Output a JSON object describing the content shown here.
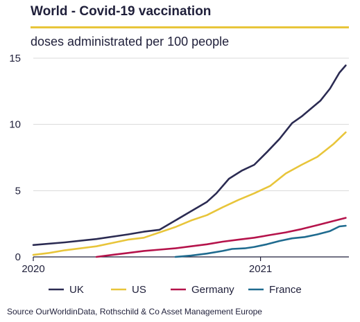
{
  "header": {
    "title": "World - Covid-19 vaccination",
    "subtitle": "doses administrated per 100 people"
  },
  "footer": {
    "source": "Source OurWorldinData, Rothschild  & Co Asset Management Europe"
  },
  "colors": {
    "UK": "#2b2b52",
    "US": "#e8c53a",
    "Germany": "#b5134b",
    "France": "#1f6b8f",
    "title_rule": "#e8c53a"
  },
  "chart_data": {
    "type": "line",
    "title": "World - Covid-19 vaccination",
    "subtitle": "doses administrated per 100 people",
    "ylim": [
      0,
      15
    ],
    "yticks": [
      0,
      5,
      10,
      15
    ],
    "ytick_labels": [
      "0",
      "5",
      "10",
      "15"
    ],
    "x_range": [
      0,
      100
    ],
    "xticks": [
      {
        "x": 0,
        "label": "2020"
      },
      {
        "x": 72,
        "label": "2021"
      }
    ],
    "legend_position": "bottom",
    "grid": "horizontal",
    "series": [
      {
        "name": "UK",
        "x": [
          0,
          10,
          20,
          30,
          35,
          40,
          45,
          50,
          55,
          58,
          62,
          66,
          70,
          74,
          78,
          82,
          85,
          88,
          91,
          94,
          97,
          99
        ],
        "values": [
          0.9,
          1.1,
          1.35,
          1.7,
          1.9,
          2.05,
          2.75,
          3.45,
          4.15,
          4.8,
          5.9,
          6.5,
          6.95,
          7.9,
          8.9,
          10.1,
          10.6,
          11.2,
          11.8,
          12.7,
          13.9,
          14.45
        ]
      },
      {
        "name": "US",
        "x": [
          0,
          5,
          10,
          15,
          20,
          25,
          30,
          35,
          40,
          45,
          50,
          55,
          60,
          65,
          70,
          75,
          80,
          85,
          90,
          95,
          99
        ],
        "values": [
          0.15,
          0.3,
          0.5,
          0.65,
          0.8,
          1.05,
          1.3,
          1.45,
          1.85,
          2.25,
          2.75,
          3.15,
          3.75,
          4.3,
          4.8,
          5.35,
          6.3,
          6.95,
          7.55,
          8.5,
          9.4
        ]
      },
      {
        "name": "Germany",
        "x": [
          20,
          25,
          30,
          35,
          40,
          45,
          50,
          55,
          60,
          65,
          70,
          75,
          80,
          85,
          90,
          95,
          99
        ],
        "values": [
          0.0,
          0.15,
          0.3,
          0.45,
          0.55,
          0.65,
          0.8,
          0.95,
          1.15,
          1.3,
          1.45,
          1.65,
          1.85,
          2.1,
          2.4,
          2.7,
          2.95
        ]
      },
      {
        "name": "France",
        "x": [
          45,
          50,
          55,
          60,
          63,
          67,
          70,
          74,
          78,
          82,
          86,
          90,
          94,
          97,
          99
        ],
        "values": [
          0.0,
          0.1,
          0.25,
          0.45,
          0.6,
          0.65,
          0.75,
          0.95,
          1.2,
          1.4,
          1.5,
          1.7,
          1.95,
          2.3,
          2.35
        ]
      }
    ]
  }
}
